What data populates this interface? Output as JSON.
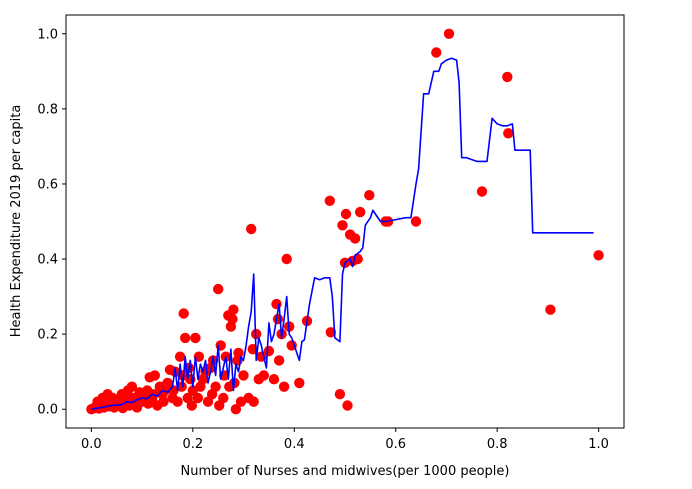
{
  "chart_data": {
    "type": "scatter",
    "title": "",
    "xlabel": "Number of Nurses and midwives(per 1000 people)",
    "ylabel": "Health Expenditure 2019 per capita",
    "xlim": [
      -0.05,
      1.05
    ],
    "ylim": [
      -0.05,
      1.05
    ],
    "xticks": [
      "0.0",
      "0.2",
      "0.4",
      "0.6",
      "0.8",
      "1.0"
    ],
    "yticks": [
      "0.0",
      "0.2",
      "0.4",
      "0.6",
      "0.8",
      "1.0"
    ],
    "grid": false,
    "legend": "none",
    "colors": {
      "scatter": "#ff0000",
      "line": "#0000ff"
    },
    "series": [
      {
        "type": "scatter",
        "points": [
          [
            0.0,
            0.0
          ],
          [
            0.005,
            0.003
          ],
          [
            0.01,
            0.006
          ],
          [
            0.012,
            0.02
          ],
          [
            0.015,
            0.002
          ],
          [
            0.02,
            0.01
          ],
          [
            0.022,
            0.03
          ],
          [
            0.025,
            0.005
          ],
          [
            0.03,
            0.015
          ],
          [
            0.032,
            0.04
          ],
          [
            0.035,
            0.008
          ],
          [
            0.04,
            0.02
          ],
          [
            0.042,
            0.03
          ],
          [
            0.045,
            0.005
          ],
          [
            0.05,
            0.01
          ],
          [
            0.052,
            0.025
          ],
          [
            0.055,
            0.012
          ],
          [
            0.06,
            0.04
          ],
          [
            0.062,
            0.003
          ],
          [
            0.065,
            0.02
          ],
          [
            0.07,
            0.03
          ],
          [
            0.072,
            0.05
          ],
          [
            0.075,
            0.01
          ],
          [
            0.08,
            0.06
          ],
          [
            0.082,
            0.02
          ],
          [
            0.085,
            0.03
          ],
          [
            0.09,
            0.005
          ],
          [
            0.095,
            0.045
          ],
          [
            0.1,
            0.02
          ],
          [
            0.105,
            0.035
          ],
          [
            0.11,
            0.05
          ],
          [
            0.112,
            0.015
          ],
          [
            0.115,
            0.085
          ],
          [
            0.12,
            0.03
          ],
          [
            0.122,
            0.04
          ],
          [
            0.125,
            0.09
          ],
          [
            0.13,
            0.01
          ],
          [
            0.135,
            0.06
          ],
          [
            0.14,
            0.04
          ],
          [
            0.142,
            0.02
          ],
          [
            0.145,
            0.05
          ],
          [
            0.15,
            0.07
          ],
          [
            0.155,
            0.105
          ],
          [
            0.16,
            0.03
          ],
          [
            0.162,
            0.05
          ],
          [
            0.165,
            0.1
          ],
          [
            0.17,
            0.02
          ],
          [
            0.175,
            0.14
          ],
          [
            0.178,
            0.06
          ],
          [
            0.18,
            0.09
          ],
          [
            0.182,
            0.255
          ],
          [
            0.185,
            0.19
          ],
          [
            0.19,
            0.03
          ],
          [
            0.192,
            0.11
          ],
          [
            0.195,
            0.08
          ],
          [
            0.198,
            0.01
          ],
          [
            0.2,
            0.05
          ],
          [
            0.205,
            0.19
          ],
          [
            0.21,
            0.03
          ],
          [
            0.212,
            0.14
          ],
          [
            0.215,
            0.06
          ],
          [
            0.22,
            0.08
          ],
          [
            0.225,
            0.1
          ],
          [
            0.23,
            0.02
          ],
          [
            0.235,
            0.11
          ],
          [
            0.238,
            0.04
          ],
          [
            0.24,
            0.13
          ],
          [
            0.245,
            0.06
          ],
          [
            0.25,
            0.32
          ],
          [
            0.252,
            0.01
          ],
          [
            0.255,
            0.17
          ],
          [
            0.26,
            0.03
          ],
          [
            0.262,
            0.09
          ],
          [
            0.265,
            0.14
          ],
          [
            0.27,
            0.25
          ],
          [
            0.272,
            0.06
          ],
          [
            0.275,
            0.22
          ],
          [
            0.278,
            0.24
          ],
          [
            0.28,
            0.265
          ],
          [
            0.282,
            0.07
          ],
          [
            0.285,
            0.0
          ],
          [
            0.288,
            0.13
          ],
          [
            0.29,
            0.15
          ],
          [
            0.295,
            0.02
          ],
          [
            0.3,
            0.09
          ],
          [
            0.31,
            0.03
          ],
          [
            0.315,
            0.48
          ],
          [
            0.318,
            0.16
          ],
          [
            0.32,
            0.02
          ],
          [
            0.325,
            0.2
          ],
          [
            0.33,
            0.08
          ],
          [
            0.335,
            0.14
          ],
          [
            0.34,
            0.09
          ],
          [
            0.35,
            0.155
          ],
          [
            0.36,
            0.08
          ],
          [
            0.365,
            0.28
          ],
          [
            0.368,
            0.24
          ],
          [
            0.37,
            0.13
          ],
          [
            0.375,
            0.2
          ],
          [
            0.38,
            0.06
          ],
          [
            0.385,
            0.4
          ],
          [
            0.39,
            0.22
          ],
          [
            0.395,
            0.17
          ],
          [
            0.41,
            0.07
          ],
          [
            0.425,
            0.235
          ],
          [
            0.47,
            0.555
          ],
          [
            0.472,
            0.205
          ],
          [
            0.49,
            0.04
          ],
          [
            0.495,
            0.49
          ],
          [
            0.5,
            0.39
          ],
          [
            0.502,
            0.52
          ],
          [
            0.505,
            0.01
          ],
          [
            0.51,
            0.465
          ],
          [
            0.515,
            0.395
          ],
          [
            0.52,
            0.455
          ],
          [
            0.525,
            0.4
          ],
          [
            0.53,
            0.525
          ],
          [
            0.548,
            0.57
          ],
          [
            0.58,
            0.5
          ],
          [
            0.585,
            0.5
          ],
          [
            0.64,
            0.5
          ],
          [
            0.68,
            0.95
          ],
          [
            0.705,
            1.0
          ],
          [
            0.77,
            0.58
          ],
          [
            0.82,
            0.885
          ],
          [
            0.822,
            0.735
          ],
          [
            0.905,
            0.265
          ],
          [
            1.0,
            0.41
          ]
        ]
      },
      {
        "type": "line",
        "points": [
          [
            0.0,
            0.0
          ],
          [
            0.02,
            0.005
          ],
          [
            0.04,
            0.01
          ],
          [
            0.06,
            0.012
          ],
          [
            0.07,
            0.02
          ],
          [
            0.08,
            0.018
          ],
          [
            0.09,
            0.025
          ],
          [
            0.1,
            0.03
          ],
          [
            0.11,
            0.028
          ],
          [
            0.12,
            0.04
          ],
          [
            0.13,
            0.035
          ],
          [
            0.14,
            0.05
          ],
          [
            0.15,
            0.045
          ],
          [
            0.16,
            0.06
          ],
          [
            0.165,
            0.11
          ],
          [
            0.17,
            0.05
          ],
          [
            0.175,
            0.12
          ],
          [
            0.18,
            0.06
          ],
          [
            0.185,
            0.14
          ],
          [
            0.19,
            0.08
          ],
          [
            0.195,
            0.13
          ],
          [
            0.2,
            0.06
          ],
          [
            0.205,
            0.14
          ],
          [
            0.21,
            0.08
          ],
          [
            0.215,
            0.12
          ],
          [
            0.22,
            0.1
          ],
          [
            0.225,
            0.13
          ],
          [
            0.23,
            0.07
          ],
          [
            0.235,
            0.1
          ],
          [
            0.24,
            0.14
          ],
          [
            0.245,
            0.09
          ],
          [
            0.25,
            0.17
          ],
          [
            0.255,
            0.08
          ],
          [
            0.26,
            0.11
          ],
          [
            0.265,
            0.14
          ],
          [
            0.27,
            0.08
          ],
          [
            0.275,
            0.16
          ],
          [
            0.28,
            0.05
          ],
          [
            0.285,
            0.12
          ],
          [
            0.29,
            0.1
          ],
          [
            0.295,
            0.14
          ],
          [
            0.3,
            0.13
          ],
          [
            0.305,
            0.17
          ],
          [
            0.31,
            0.22
          ],
          [
            0.315,
            0.26
          ],
          [
            0.32,
            0.36
          ],
          [
            0.325,
            0.13
          ],
          [
            0.33,
            0.19
          ],
          [
            0.335,
            0.17
          ],
          [
            0.34,
            0.14
          ],
          [
            0.345,
            0.11
          ],
          [
            0.35,
            0.23
          ],
          [
            0.355,
            0.18
          ],
          [
            0.36,
            0.2
          ],
          [
            0.365,
            0.24
          ],
          [
            0.37,
            0.28
          ],
          [
            0.375,
            0.19
          ],
          [
            0.38,
            0.24
          ],
          [
            0.385,
            0.3
          ],
          [
            0.39,
            0.2
          ],
          [
            0.395,
            0.19
          ],
          [
            0.4,
            0.17
          ],
          [
            0.405,
            0.15
          ],
          [
            0.41,
            0.13
          ],
          [
            0.415,
            0.18
          ],
          [
            0.42,
            0.185
          ],
          [
            0.43,
            0.28
          ],
          [
            0.44,
            0.35
          ],
          [
            0.45,
            0.345
          ],
          [
            0.46,
            0.35
          ],
          [
            0.47,
            0.35
          ],
          [
            0.475,
            0.3
          ],
          [
            0.48,
            0.19
          ],
          [
            0.49,
            0.18
          ],
          [
            0.495,
            0.36
          ],
          [
            0.5,
            0.39
          ],
          [
            0.51,
            0.4
          ],
          [
            0.515,
            0.38
          ],
          [
            0.52,
            0.41
          ],
          [
            0.53,
            0.42
          ],
          [
            0.535,
            0.43
          ],
          [
            0.54,
            0.49
          ],
          [
            0.55,
            0.51
          ],
          [
            0.555,
            0.53
          ],
          [
            0.56,
            0.52
          ],
          [
            0.57,
            0.5
          ],
          [
            0.58,
            0.5
          ],
          [
            0.6,
            0.505
          ],
          [
            0.62,
            0.51
          ],
          [
            0.63,
            0.51
          ],
          [
            0.64,
            0.6
          ],
          [
            0.645,
            0.64
          ],
          [
            0.655,
            0.84
          ],
          [
            0.665,
            0.84
          ],
          [
            0.675,
            0.9
          ],
          [
            0.685,
            0.9
          ],
          [
            0.69,
            0.92
          ],
          [
            0.7,
            0.93
          ],
          [
            0.71,
            0.935
          ],
          [
            0.72,
            0.93
          ],
          [
            0.725,
            0.87
          ],
          [
            0.73,
            0.67
          ],
          [
            0.74,
            0.67
          ],
          [
            0.75,
            0.665
          ],
          [
            0.76,
            0.66
          ],
          [
            0.77,
            0.66
          ],
          [
            0.78,
            0.66
          ],
          [
            0.79,
            0.775
          ],
          [
            0.8,
            0.76
          ],
          [
            0.81,
            0.755
          ],
          [
            0.82,
            0.755
          ],
          [
            0.83,
            0.76
          ],
          [
            0.835,
            0.69
          ],
          [
            0.85,
            0.69
          ],
          [
            0.865,
            0.69
          ],
          [
            0.87,
            0.47
          ],
          [
            0.9,
            0.47
          ],
          [
            0.95,
            0.47
          ],
          [
            0.99,
            0.47
          ]
        ]
      }
    ]
  }
}
